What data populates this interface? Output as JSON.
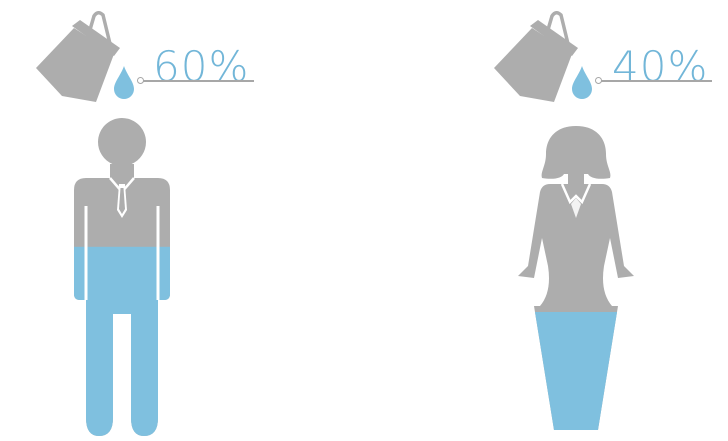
{
  "colors": {
    "body_gray": "#adadad",
    "water_blue": "#7fc0df",
    "label_blue": "#72b6d8",
    "line_gray": "#a7a7a7",
    "background": "#ffffff"
  },
  "figures": [
    {
      "id": "male",
      "percent_label": "60%",
      "water_fraction": 0.6,
      "icons": [
        "bucket-icon",
        "water-drop-icon",
        "man-silhouette-icon"
      ]
    },
    {
      "id": "female",
      "percent_label": "40%",
      "water_fraction": 0.4,
      "icons": [
        "bucket-icon",
        "water-drop-icon",
        "woman-silhouette-icon"
      ]
    }
  ]
}
